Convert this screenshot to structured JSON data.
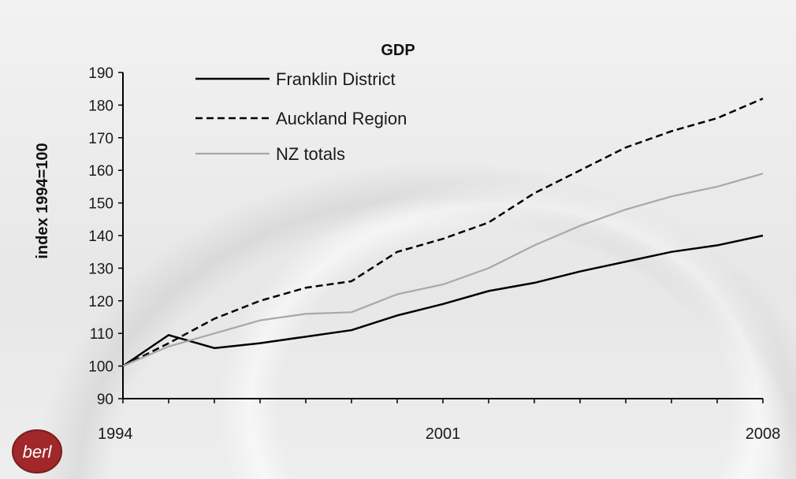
{
  "logo": {
    "text": "berl",
    "color": "#a0282a"
  },
  "chart_data": {
    "type": "line",
    "title": "GDP",
    "xlabel": "",
    "ylabel": "index 1994=100",
    "x": [
      1994,
      1995,
      1996,
      1997,
      1998,
      1999,
      2000,
      2001,
      2002,
      2003,
      2004,
      2005,
      2006,
      2007,
      2008
    ],
    "x_tick_labels": [
      "1994",
      "2001",
      "2008"
    ],
    "x_tick_values": [
      1994,
      2001,
      2008
    ],
    "xlim": [
      1994,
      2008
    ],
    "ylim": [
      90,
      190
    ],
    "y_ticks": [
      90,
      100,
      110,
      120,
      130,
      140,
      150,
      160,
      170,
      180,
      190
    ],
    "grid": false,
    "legend_position": "top-left",
    "series": [
      {
        "name": "Franklin District",
        "style": "solid",
        "color": "#000000",
        "values": [
          100,
          109.5,
          105.5,
          107,
          109,
          111,
          115.5,
          119,
          123,
          125.5,
          129,
          132,
          135,
          137,
          140
        ]
      },
      {
        "name": "Auckland Region",
        "style": "dashed",
        "color": "#000000",
        "values": [
          100,
          107,
          114.5,
          120,
          124,
          126,
          135,
          139,
          144,
          153,
          160,
          167,
          172,
          176,
          182
        ]
      },
      {
        "name": "NZ totals",
        "style": "solid",
        "color": "#a8a8a8",
        "values": [
          100,
          106,
          110,
          114,
          116,
          116.5,
          122,
          125,
          130,
          137,
          143,
          148,
          152,
          155,
          159
        ]
      }
    ]
  }
}
